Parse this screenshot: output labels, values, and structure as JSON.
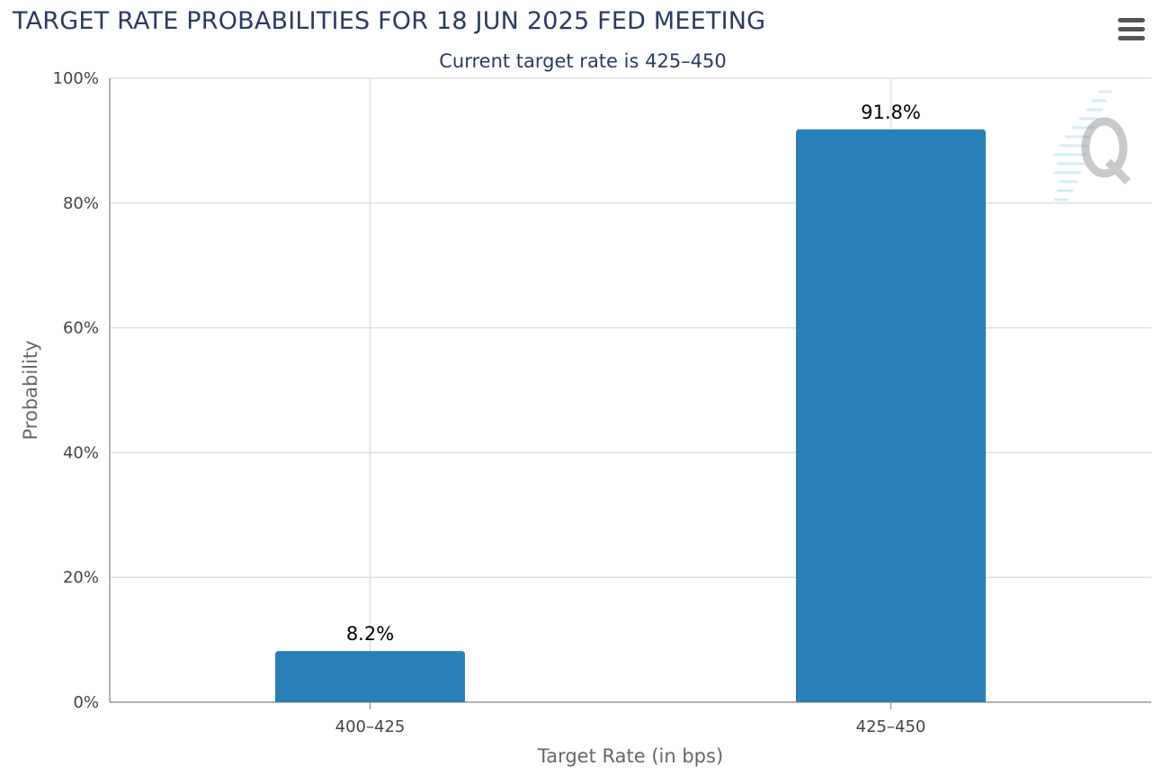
{
  "chart_data": {
    "type": "bar",
    "title": "TARGET RATE PROBABILITIES FOR 18 JUN 2025 FED MEETING",
    "subtitle": "Current target rate is 425–450",
    "categories": [
      "400–425",
      "425–450"
    ],
    "values": [
      8.2,
      91.8
    ],
    "data_labels": [
      "8.2%",
      "91.8%"
    ],
    "xlabel": "Target Rate (in bps)",
    "ylabel": "Probability",
    "ylim": [
      0,
      100
    ],
    "yticks": [
      0,
      20,
      40,
      60,
      80,
      100
    ],
    "ytick_labels": [
      "0%",
      "20%",
      "40%",
      "60%",
      "80%",
      "100%"
    ],
    "grid": true,
    "bar_color": "#2980b9",
    "grid_color": "#e0e0e0",
    "axis_color": "#999999"
  },
  "toolbar": {
    "menu_icon": "hamburger-menu-icon"
  },
  "watermark": {
    "icon": "q-logo-icon"
  }
}
